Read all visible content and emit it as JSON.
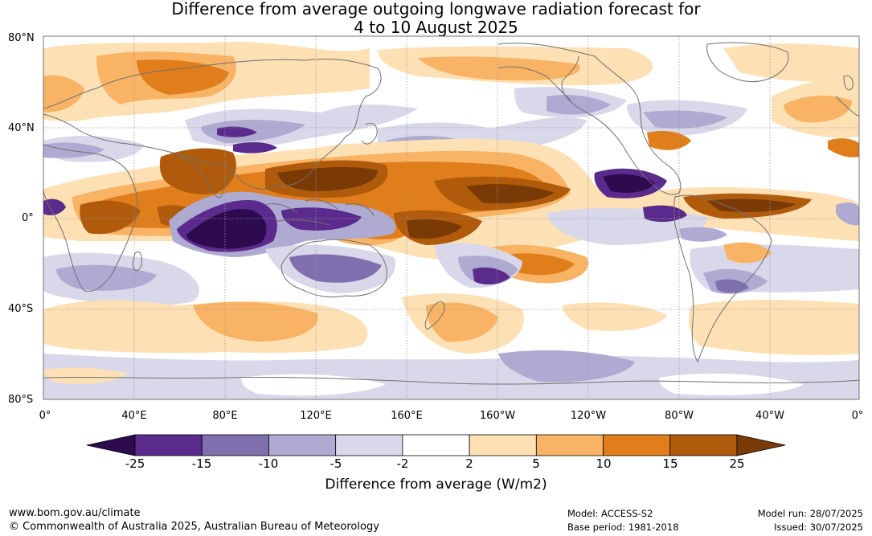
{
  "title_line1": "Difference from average outgoing longwave radiation forecast for",
  "title_line2": "4 to 10 August 2025",
  "lat_labels": [
    "80°N",
    "40°N",
    "0°",
    "40°S",
    "80°S"
  ],
  "lon_labels": [
    "0°",
    "40°E",
    "80°E",
    "120°E",
    "160°E",
    "160°W",
    "120°W",
    "80°W",
    "40°W",
    "0°"
  ],
  "colorbar": {
    "ticks": [
      "-25",
      "-15",
      "-10",
      "-5",
      "-2",
      "2",
      "5",
      "10",
      "15",
      "25"
    ],
    "colors": [
      "#2e0a4e",
      "#5a2a8c",
      "#8070b0",
      "#aeaad2",
      "#d8d8ea",
      "#ffffff",
      "#fde0b4",
      "#f8b464",
      "#e07e1c",
      "#b05a0c",
      "#7a3a06"
    ],
    "label": "Difference from average (W/m2)"
  },
  "footer": {
    "website": "www.bom.gov.au/climate",
    "copyright": "© Commonwealth of Australia 2025, Australian Bureau of Meteorology",
    "model": "Model: ACCESS-S2",
    "base_period": "Base period: 1981-2018",
    "model_run": "Model run: 28/07/2025",
    "issued": "Issued: 30/07/2025"
  }
}
